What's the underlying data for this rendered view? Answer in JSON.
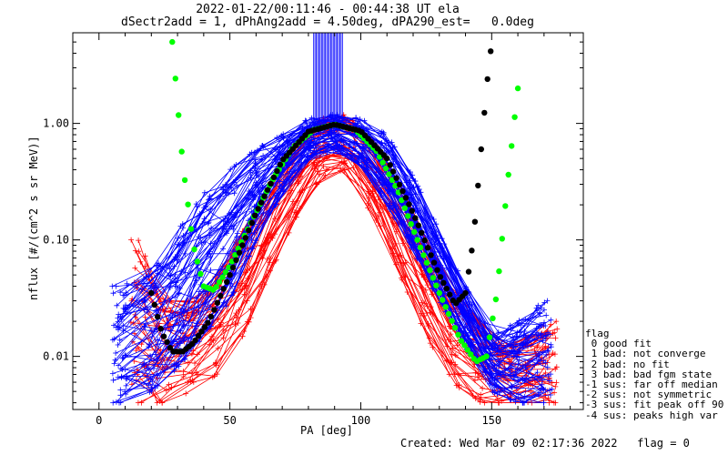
{
  "title_line1": "2022-01-22/00:11:46 - 00:44:38 UT ela",
  "title_line2": "dSectr2add = 1, dPhAng2add = 4.50deg, dPA290_est=   0.0deg",
  "footer": "Created: Wed Mar 09 02:17:36 2022   flag = 0",
  "legend": {
    "header": "flag",
    "items": [
      " 0 good fit",
      " 1 bad: not converge",
      " 2 bad: no fit",
      " 3 bad: bad fgm state",
      "-1 sus: far off median",
      "-2 sus: not symmetric",
      "-3 sus: fit peak off 90",
      "-4 sus: peaks high var"
    ]
  },
  "chart_data": {
    "type": "line",
    "xlabel": "PA [deg]",
    "ylabel": "nflux [#/(cm^2 s sr MeV)]",
    "xlim": [
      -10,
      185
    ],
    "ylim": [
      0.0035,
      6.0
    ],
    "yscale": "log",
    "xticks": [
      0,
      50,
      100,
      150
    ],
    "yticks": [
      {
        "value": 1.0,
        "label": "1.00"
      },
      {
        "value": 0.1,
        "label": "0.10"
      },
      {
        "value": 0.01,
        "label": "0.01"
      }
    ],
    "colors": {
      "blue_series": "#0000ff",
      "red_series": "#ff0000",
      "green_fit": "#00ff00",
      "black_fit": "#000000"
    },
    "fits": [
      {
        "color": "green",
        "x": [
          28,
          32,
          36,
          40,
          44,
          50,
          58,
          66,
          74,
          82,
          90,
          98,
          106,
          114,
          122,
          130,
          138,
          144,
          148,
          152,
          156,
          160
        ],
        "y": [
          5.0,
          0.45,
          0.09,
          0.04,
          0.037,
          0.06,
          0.14,
          0.32,
          0.62,
          0.88,
          0.98,
          0.88,
          0.58,
          0.27,
          0.095,
          0.035,
          0.014,
          0.009,
          0.01,
          0.035,
          0.3,
          2.0
        ]
      },
      {
        "color": "black",
        "x": [
          20,
          24,
          28,
          32,
          36,
          42,
          50,
          60,
          70,
          80,
          90,
          100,
          110,
          120,
          130,
          136,
          140,
          143,
          146,
          148,
          150
        ],
        "y": [
          0.035,
          0.016,
          0.011,
          0.011,
          0.013,
          0.02,
          0.05,
          0.17,
          0.48,
          0.85,
          0.98,
          0.86,
          0.5,
          0.17,
          0.05,
          0.028,
          0.035,
          0.1,
          0.6,
          2.0,
          5.0
        ]
      }
    ],
    "blue_envelope": {
      "x": [
        8,
        20,
        30,
        40,
        50,
        60,
        70,
        80,
        90,
        100,
        110,
        120,
        130,
        140,
        150,
        160,
        170
      ],
      "y_low": [
        0.004,
        0.005,
        0.008,
        0.015,
        0.03,
        0.1,
        0.25,
        0.5,
        0.6,
        0.45,
        0.2,
        0.08,
        0.03,
        0.012,
        0.005,
        0.004,
        0.004
      ],
      "y_high": [
        0.04,
        0.05,
        0.12,
        0.25,
        0.4,
        0.6,
        0.8,
        1.1,
        1.2,
        1.1,
        0.8,
        0.35,
        0.12,
        0.04,
        0.015,
        0.02,
        0.03
      ]
    },
    "red_envelope": {
      "x": [
        15,
        25,
        35,
        45,
        55,
        65,
        75,
        85,
        95,
        105,
        115,
        125,
        135,
        145,
        155,
        165,
        172
      ],
      "y_low": [
        0.004,
        0.004,
        0.005,
        0.007,
        0.015,
        0.05,
        0.15,
        0.35,
        0.4,
        0.15,
        0.05,
        0.015,
        0.006,
        0.004,
        0.004,
        0.004,
        0.004
      ],
      "y_high": [
        0.1,
        0.03,
        0.03,
        0.05,
        0.12,
        0.3,
        0.7,
        1.1,
        1.2,
        0.7,
        0.3,
        0.1,
        0.04,
        0.02,
        0.012,
        0.015,
        0.02
      ]
    },
    "series_count": {
      "blue": 60,
      "red": 40
    }
  }
}
